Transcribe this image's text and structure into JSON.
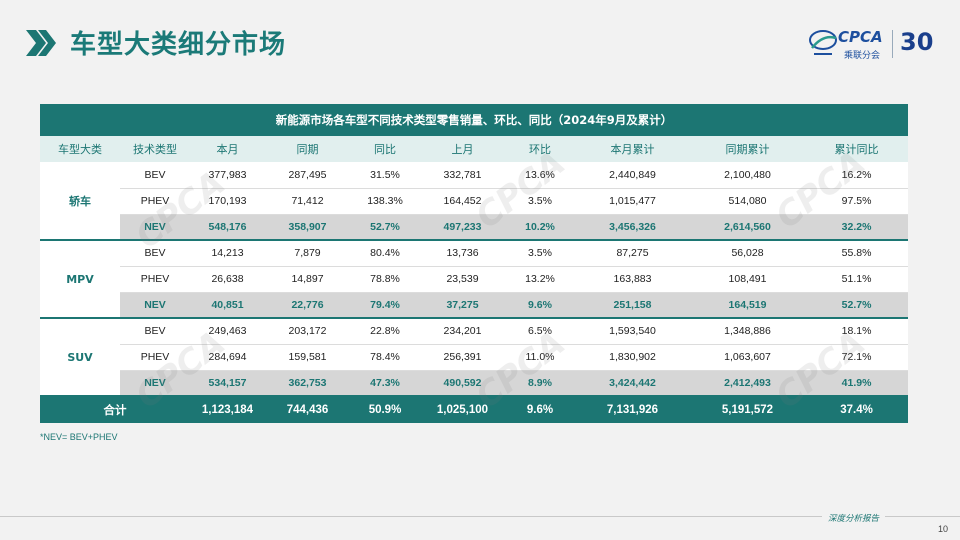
{
  "page": {
    "title": "车型大类细分市场",
    "page_number": "10",
    "footer_text": "深度分析报告",
    "footnote": "*NEV= BEV+PHEV",
    "accent_color": "#1c7673"
  },
  "logo": {
    "brand": "CPCA",
    "subtitle": "乘联分会",
    "anniversary": "30",
    "icon": "cpca-logo-icon"
  },
  "watermark_text": "CPCA",
  "table": {
    "caption": "新能源市场各车型不同技术类型零售销量、环比、同比（2024年9月及累计）",
    "headers": [
      "车型大类",
      "技术类型",
      "本月",
      "同期",
      "同比",
      "上月",
      "环比",
      "本月累计",
      "同期累计",
      "累计同比"
    ],
    "groups": [
      {
        "category": "轿车",
        "rows": [
          [
            "BEV",
            "377,983",
            "287,495",
            "31.5%",
            "332,781",
            "13.6%",
            "2,440,849",
            "2,100,480",
            "16.2%"
          ],
          [
            "PHEV",
            "170,193",
            "71,412",
            "138.3%",
            "164,452",
            "3.5%",
            "1,015,477",
            "514,080",
            "97.5%"
          ],
          [
            "NEV",
            "548,176",
            "358,907",
            "52.7%",
            "497,233",
            "10.2%",
            "3,456,326",
            "2,614,560",
            "32.2%"
          ]
        ]
      },
      {
        "category": "MPV",
        "rows": [
          [
            "BEV",
            "14,213",
            "7,879",
            "80.4%",
            "13,736",
            "3.5%",
            "87,275",
            "56,028",
            "55.8%"
          ],
          [
            "PHEV",
            "26,638",
            "14,897",
            "78.8%",
            "23,539",
            "13.2%",
            "163,883",
            "108,491",
            "51.1%"
          ],
          [
            "NEV",
            "40,851",
            "22,776",
            "79.4%",
            "37,275",
            "9.6%",
            "251,158",
            "164,519",
            "52.7%"
          ]
        ]
      },
      {
        "category": "SUV",
        "rows": [
          [
            "BEV",
            "249,463",
            "203,172",
            "22.8%",
            "234,201",
            "6.5%",
            "1,593,540",
            "1,348,886",
            "18.1%"
          ],
          [
            "PHEV",
            "284,694",
            "159,581",
            "78.4%",
            "256,391",
            "11.0%",
            "1,830,902",
            "1,063,607",
            "72.1%"
          ],
          [
            "NEV",
            "534,157",
            "362,753",
            "47.3%",
            "490,592",
            "8.9%",
            "3,424,442",
            "2,412,493",
            "41.9%"
          ]
        ]
      }
    ],
    "total": [
      "合计",
      "1,123,184",
      "744,436",
      "50.9%",
      "1,025,100",
      "9.6%",
      "7,131,926",
      "5,191,572",
      "37.4%"
    ]
  }
}
